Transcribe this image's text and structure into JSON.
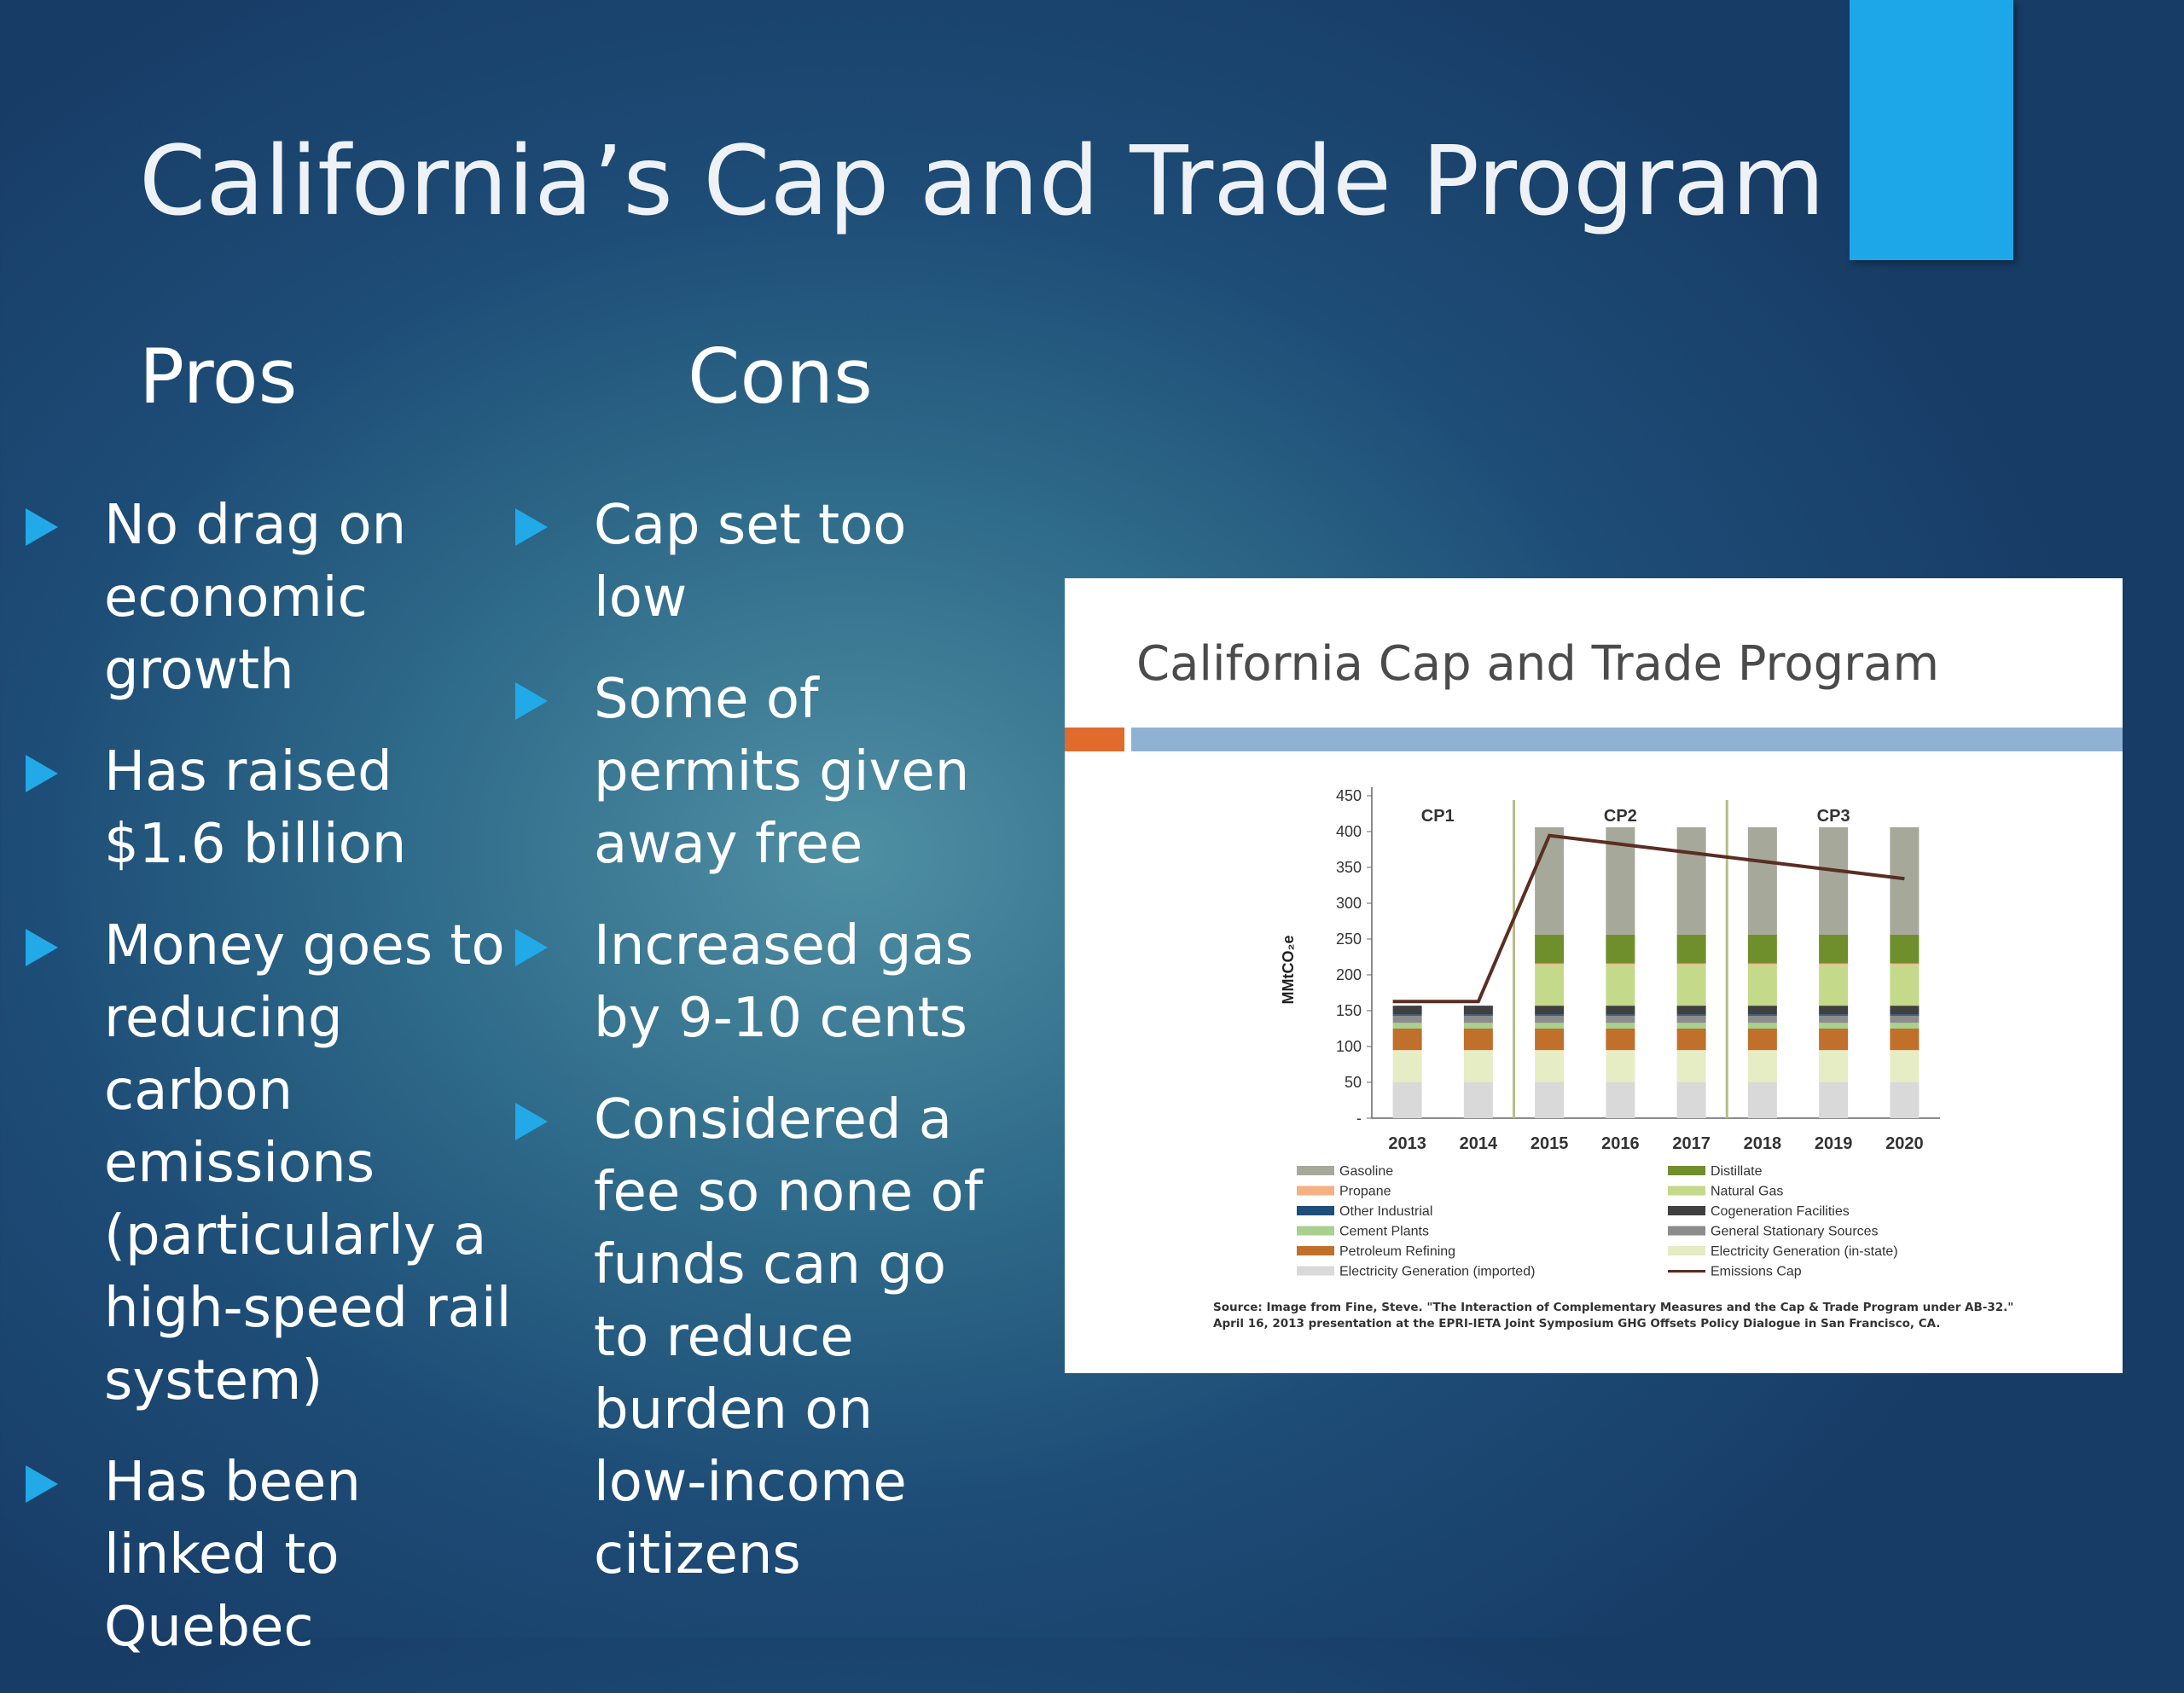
{
  "slide": {
    "title": "California’s Cap and Trade Program",
    "accent_color": "#1ea7e8",
    "pros_heading": "Pros",
    "cons_heading": "Cons",
    "pros": [
      "No drag on economic growth",
      "Has raised $1.6 billion",
      "Money goes to reducing carbon emissions (particularly a high-speed rail system)",
      "Has been linked to Quebec"
    ],
    "cons": [
      "Cap set too low",
      "Some of permits given away free",
      "Increased gas by 9-10 cents",
      "Considered a fee so none of funds can go to reduce burden on low-income citizens"
    ],
    "bullet_icon": "triangle-bullet-icon"
  },
  "chart_data": {
    "type": "bar",
    "title": "California Cap and Trade Program",
    "ylabel": "MMtCO₂e",
    "ylim": [
      0,
      450
    ],
    "y_ticks": [
      "-",
      "50",
      "100",
      "150",
      "200",
      "250",
      "300",
      "350",
      "400",
      "450"
    ],
    "categories": [
      "2013",
      "2014",
      "2015",
      "2016",
      "2017",
      "2018",
      "2019",
      "2020"
    ],
    "periods": [
      {
        "label": "CP1",
        "categories": [
          "2013",
          "2014"
        ]
      },
      {
        "label": "CP2",
        "categories": [
          "2015",
          "2016",
          "2017"
        ]
      },
      {
        "label": "CP3",
        "categories": [
          "2018",
          "2019",
          "2020"
        ]
      }
    ],
    "series": [
      {
        "name": "Electricity Generation (imported)",
        "color": "#d9d9d9",
        "values": [
          50,
          50,
          50,
          50,
          50,
          50,
          50,
          50
        ]
      },
      {
        "name": "Electricity Generation (in-state)",
        "color": "#e6ecc4",
        "values": [
          45,
          45,
          45,
          45,
          45,
          45,
          45,
          45
        ]
      },
      {
        "name": "Petroleum Refining",
        "color": "#c0702a",
        "values": [
          30,
          30,
          30,
          30,
          30,
          30,
          30,
          30
        ]
      },
      {
        "name": "Cement Plants",
        "color": "#a9d08e",
        "values": [
          8,
          8,
          8,
          8,
          8,
          8,
          8,
          8
        ]
      },
      {
        "name": "General Stationary Sources",
        "color": "#8c8c8c",
        "values": [
          10,
          10,
          10,
          10,
          10,
          10,
          10,
          10
        ]
      },
      {
        "name": "Other Industrial",
        "color": "#1f4e79",
        "values": [
          2,
          2,
          2,
          2,
          2,
          2,
          2,
          2
        ]
      },
      {
        "name": "Cogeneration Facilities",
        "color": "#404040",
        "values": [
          12,
          12,
          12,
          12,
          12,
          12,
          12,
          12
        ]
      },
      {
        "name": "Natural Gas",
        "color": "#c5d98a",
        "values": [
          0,
          0,
          57,
          57,
          57,
          57,
          57,
          57
        ]
      },
      {
        "name": "Propane",
        "color": "#f4b183",
        "values": [
          0,
          0,
          2,
          2,
          2,
          2,
          2,
          2
        ]
      },
      {
        "name": "Distillate",
        "color": "#6f8f2c",
        "values": [
          0,
          0,
          40,
          40,
          40,
          40,
          40,
          40
        ]
      },
      {
        "name": "Gasoline",
        "color": "#a6a899",
        "values": [
          0,
          0,
          150,
          150,
          150,
          150,
          150,
          150
        ]
      }
    ],
    "cap_series": {
      "name": "Emissions Cap",
      "color": "#5a2e23",
      "values": [
        162.8,
        162.8,
        394.5,
        382.4,
        370.4,
        358.3,
        346.3,
        334.2
      ]
    },
    "legend": {
      "placement": "bottom",
      "left": [
        "Gasoline",
        "Propane",
        "Other Industrial",
        "Cement Plants",
        "Petroleum Refining",
        "Electricity Generation (imported)"
      ],
      "right": [
        "Distillate",
        "Natural Gas",
        "Cogeneration Facilities",
        "General Stationary Sources",
        "Electricity Generation (in-state)",
        "Emissions Cap"
      ]
    },
    "source_line1": "Source: Image from Fine, Steve. \"The Interaction of Complementary Measures and the Cap & Trade Program under AB-32.\"",
    "source_line2": "April 16, 2013 presentation at the EPRI-IETA Joint Symposium GHG Offsets Policy Dialogue in San Francisco, CA."
  }
}
